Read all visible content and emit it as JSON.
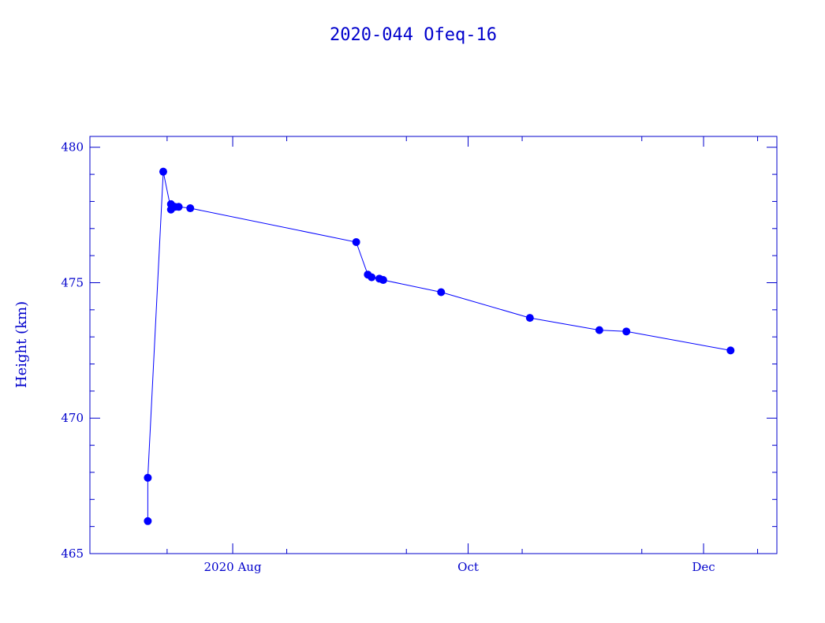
{
  "chart_data": {
    "type": "line",
    "title": "2020-044 Ofeq-16",
    "xlabel": "",
    "ylabel": "Height (km)",
    "ylim": [
      465,
      480.4
    ],
    "xlim": [
      "2020-06-25",
      "2020-12-20"
    ],
    "yticks": [
      465,
      470,
      475,
      480
    ],
    "xticks": [
      {
        "date": "2020-08-01",
        "label": "2020 Aug"
      },
      {
        "date": "2020-10-01",
        "label": "Oct"
      },
      {
        "date": "2020-12-01",
        "label": "Dec"
      }
    ],
    "color": "#0000ff",
    "axis_color": "#0000cc",
    "grid": false,
    "series": [
      {
        "points": [
          {
            "x": "2020-07-10",
            "y": 466.2
          },
          {
            "x": "2020-07-10",
            "y": 467.8
          },
          {
            "x": "2020-07-14",
            "y": 479.1
          },
          {
            "x": "2020-07-16",
            "y": 477.7
          },
          {
            "x": "2020-07-16",
            "y": 477.9
          },
          {
            "x": "2020-07-17",
            "y": 477.8
          },
          {
            "x": "2020-07-18",
            "y": 477.8
          },
          {
            "x": "2020-07-21",
            "y": 477.75
          },
          {
            "x": "2020-09-02",
            "y": 476.5
          },
          {
            "x": "2020-09-05",
            "y": 475.3
          },
          {
            "x": "2020-09-06",
            "y": 475.2
          },
          {
            "x": "2020-09-08",
            "y": 475.15
          },
          {
            "x": "2020-09-09",
            "y": 475.1
          },
          {
            "x": "2020-09-24",
            "y": 474.65
          },
          {
            "x": "2020-10-17",
            "y": 473.7
          },
          {
            "x": "2020-11-04",
            "y": 473.25
          },
          {
            "x": "2020-11-11",
            "y": 473.2
          },
          {
            "x": "2020-12-08",
            "y": 472.5
          }
        ]
      }
    ]
  }
}
